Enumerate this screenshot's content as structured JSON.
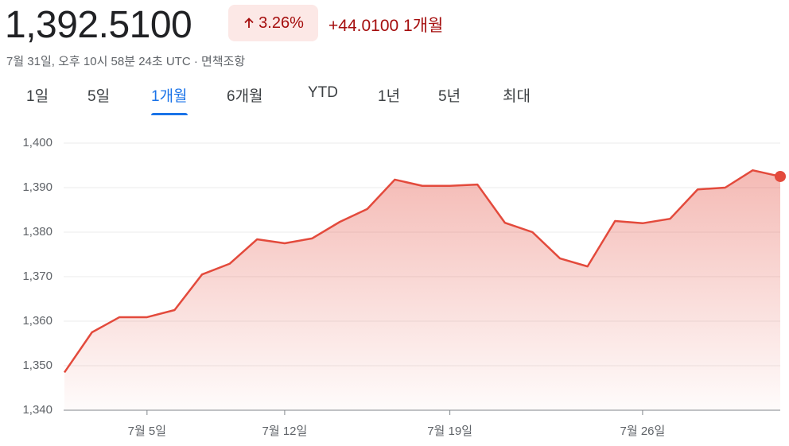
{
  "header": {
    "price": "1,392.5100",
    "change_percent": "3.26%",
    "change": "+44.0100",
    "period": "1개월",
    "timestamp": "7월 31일, 오후 10시 58분 24초 UTC · 면책조항"
  },
  "tabs": [
    "1일",
    "5일",
    "1개월",
    "6개월",
    "YTD",
    "1년",
    "5년",
    "최대"
  ],
  "selected_tab": 2,
  "chart_data": {
    "type": "area",
    "categories": [
      null,
      null,
      null,
      "7월 5일",
      null,
      null,
      null,
      null,
      "7월 12일",
      null,
      null,
      null,
      null,
      null,
      "7월 19일",
      null,
      null,
      null,
      null,
      null,
      null,
      "7월 26일",
      null,
      null,
      null,
      null,
      null
    ],
    "values": [
      1348.5,
      1357.5,
      1360.9,
      1360.9,
      1362.5,
      1370.5,
      1372.9,
      1378.4,
      1377.5,
      1378.6,
      1382.3,
      1385.2,
      1391.8,
      1390.4,
      1390.4,
      1390.7,
      1382.1,
      1380.0,
      1374.1,
      1372.3,
      1382.5,
      1382.0,
      1383.0,
      1389.6,
      1390.0,
      1393.9,
      1392.51
    ],
    "color": "#e34a3c",
    "ylim": [
      1340,
      1400
    ],
    "yticks": [
      {
        "value": 1340,
        "label": "1,340"
      },
      {
        "value": 1350,
        "label": "1,350"
      },
      {
        "value": 1360,
        "label": "1,360"
      },
      {
        "value": 1370,
        "label": "1,370"
      },
      {
        "value": 1380,
        "label": "1,380"
      },
      {
        "value": 1390,
        "label": "1,390"
      },
      {
        "value": 1400,
        "label": "1,400"
      }
    ],
    "grid": true
  }
}
